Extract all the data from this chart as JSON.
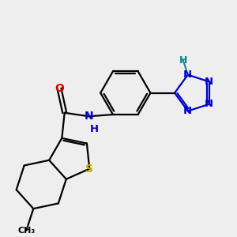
{
  "bg_color": "#eeeeee",
  "bond_color": "#000000",
  "S_color": "#ccaa00",
  "O_color": "#dd0000",
  "N_color": "#0000cc",
  "NH_color": "#008888",
  "lw": 1.6,
  "dbo": 0.055,
  "figsize": [
    3.0,
    3.0
  ],
  "dpi": 100,
  "xlim": [
    0.0,
    6.5
  ],
  "ylim": [
    0.0,
    6.5
  ]
}
